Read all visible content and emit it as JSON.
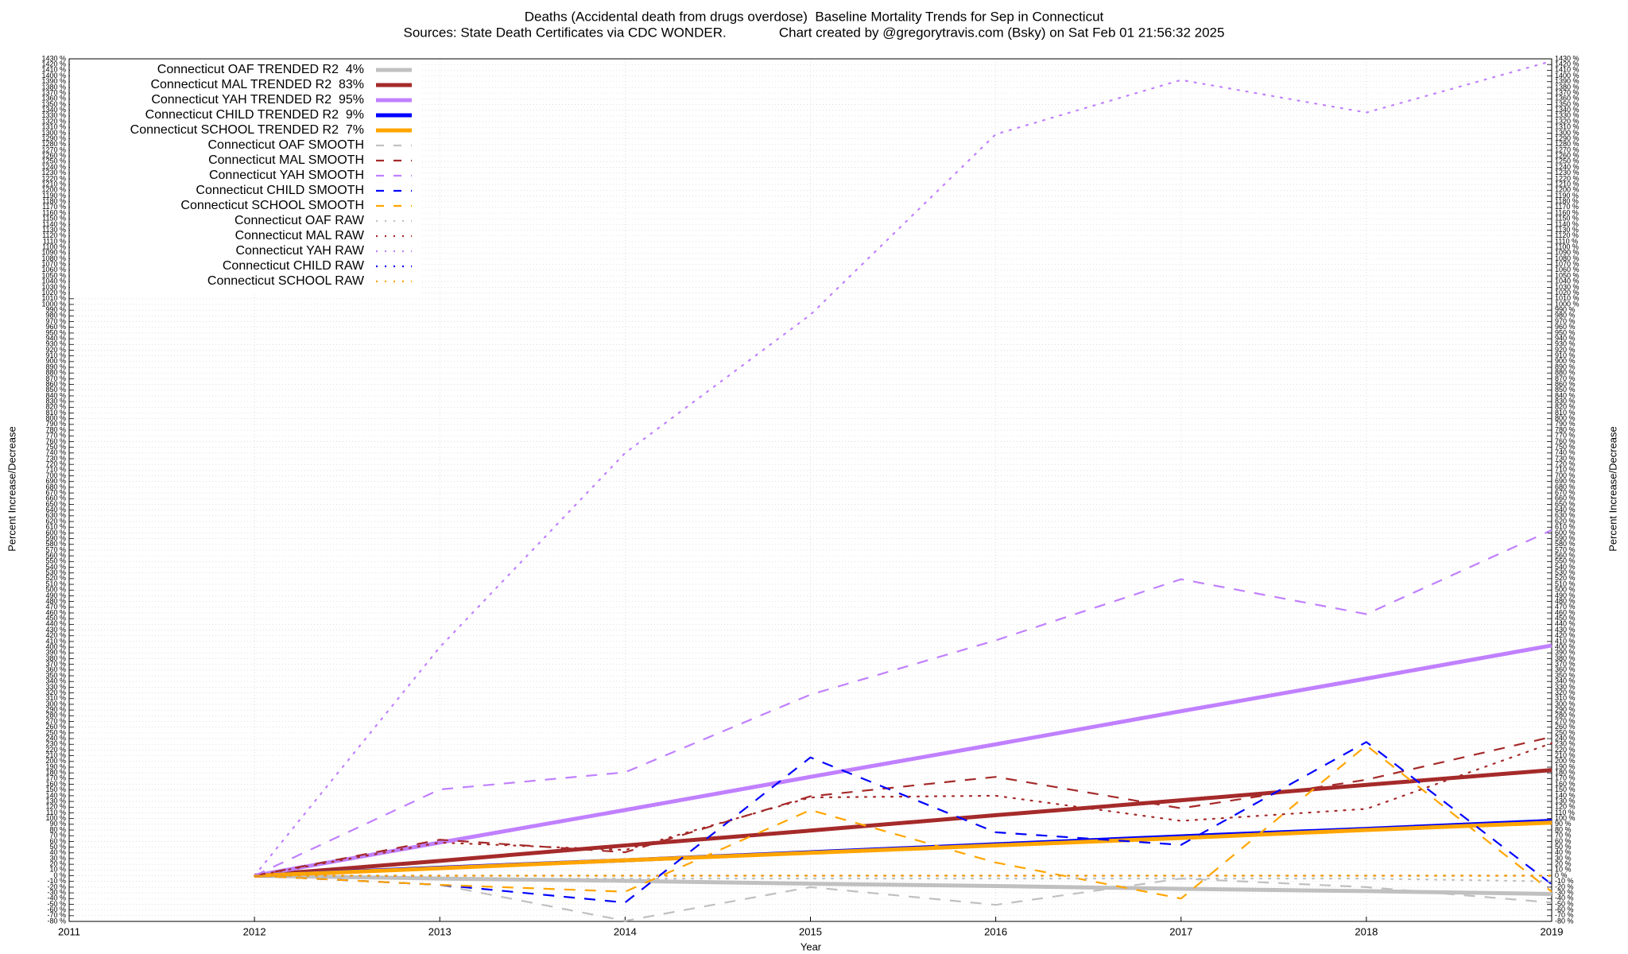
{
  "chart_data": {
    "type": "line",
    "title": "Deaths (Accidental death from drugs overdose)  Baseline Mortality Trends for Sep in Connecticut",
    "subtitle": "Sources: State Death Certificates via CDC WONDER.              Chart created by @gregorytravis.com (Bsky) on Sat Feb 01 21:56:32 2025",
    "x_label": "Year",
    "y_label": "Percent Increase/Decrease",
    "y2_label": "Percent Increase/Decrease",
    "grid": true,
    "legend": "top-left",
    "x": [
      2012,
      2013,
      2014,
      2015,
      2016,
      2017,
      2018,
      2019
    ],
    "xlim": [
      2011,
      2019
    ],
    "xticks": [
      2011,
      2012,
      2013,
      2014,
      2015,
      2016,
      2017,
      2018,
      2019
    ],
    "ylim": [
      -80,
      1430
    ],
    "y2lim": [
      -80,
      1430
    ],
    "yticks": [
      {
        "value": -80,
        "label": "-80 %"
      },
      {
        "value": -70,
        "label": "-70 %"
      },
      {
        "value": -60,
        "label": "-60 %"
      },
      {
        "value": -50,
        "label": "-50 %"
      },
      {
        "value": -40,
        "label": "-40 %"
      },
      {
        "value": -30,
        "label": "-30 %"
      },
      {
        "value": -20,
        "label": "-20 %"
      },
      {
        "value": -10,
        "label": "-10 %"
      },
      {
        "value": 0,
        "label": "0 %"
      },
      {
        "value": 10,
        "label": "10 %"
      },
      {
        "value": 20,
        "label": "20 %"
      },
      {
        "value": 30,
        "label": "30 %"
      },
      {
        "value": 40,
        "label": "40 %"
      },
      {
        "value": 50,
        "label": "50 %"
      },
      {
        "value": 60,
        "label": "60 %"
      },
      {
        "value": 70,
        "label": "70 %"
      },
      {
        "value": 80,
        "label": "80 %"
      },
      {
        "value": 90,
        "label": "90 %"
      },
      {
        "value": 100,
        "label": "100 %"
      },
      {
        "value": 110,
        "label": "110 %"
      },
      {
        "value": 120,
        "label": "120 %"
      },
      {
        "value": 130,
        "label": "130 %"
      },
      {
        "value": 140,
        "label": "140 %"
      },
      {
        "value": 150,
        "label": "150 %"
      },
      {
        "value": 160,
        "label": "160 %"
      },
      {
        "value": 170,
        "label": "170 %"
      },
      {
        "value": 180,
        "label": "180 %"
      },
      {
        "value": 190,
        "label": "190 %"
      },
      {
        "value": 200,
        "label": "200 %"
      },
      {
        "value": 210,
        "label": "210 %"
      },
      {
        "value": 220,
        "label": "220 %"
      },
      {
        "value": 230,
        "label": "230 %"
      },
      {
        "value": 240,
        "label": "240 %"
      },
      {
        "value": 250,
        "label": "250 %"
      },
      {
        "value": 260,
        "label": "260 %"
      },
      {
        "value": 270,
        "label": "270 %"
      },
      {
        "value": 280,
        "label": "280 %"
      },
      {
        "value": 290,
        "label": "290 %"
      },
      {
        "value": 300,
        "label": "300 %"
      },
      {
        "value": 310,
        "label": "310 %"
      },
      {
        "value": 320,
        "label": "320 %"
      },
      {
        "value": 330,
        "label": "330 %"
      },
      {
        "value": 340,
        "label": "340 %"
      },
      {
        "value": 350,
        "label": "350 %"
      },
      {
        "value": 360,
        "label": "360 %"
      },
      {
        "value": 370,
        "label": "370 %"
      },
      {
        "value": 380,
        "label": "380 %"
      },
      {
        "value": 390,
        "label": "390 %"
      },
      {
        "value": 400,
        "label": "400 %"
      },
      {
        "value": 410,
        "label": "410 %"
      },
      {
        "value": 420,
        "label": "420 %"
      },
      {
        "value": 430,
        "label": "430 %"
      },
      {
        "value": 440,
        "label": "440 %"
      },
      {
        "value": 450,
        "label": "450 %"
      },
      {
        "value": 460,
        "label": "460 %"
      },
      {
        "value": 470,
        "label": "470 %"
      },
      {
        "value": 480,
        "label": "480 %"
      },
      {
        "value": 490,
        "label": "490 %"
      },
      {
        "value": 500,
        "label": "500 %"
      },
      {
        "value": 510,
        "label": "510 %"
      },
      {
        "value": 520,
        "label": "520 %"
      },
      {
        "value": 530,
        "label": "530 %"
      },
      {
        "value": 540,
        "label": "540 %"
      },
      {
        "value": 550,
        "label": "550 %"
      },
      {
        "value": 560,
        "label": "560 %"
      },
      {
        "value": 570,
        "label": "570 %"
      },
      {
        "value": 580,
        "label": "580 %"
      },
      {
        "value": 590,
        "label": "590 %"
      },
      {
        "value": 600,
        "label": "600 %"
      },
      {
        "value": 610,
        "label": "610 %"
      },
      {
        "value": 620,
        "label": "620 %"
      },
      {
        "value": 630,
        "label": "630 %"
      },
      {
        "value": 640,
        "label": "640 %"
      },
      {
        "value": 650,
        "label": "650 %"
      },
      {
        "value": 660,
        "label": "660 %"
      },
      {
        "value": 670,
        "label": "670 %"
      },
      {
        "value": 680,
        "label": "680 %"
      },
      {
        "value": 690,
        "label": "690 %"
      },
      {
        "value": 700,
        "label": "700 %"
      },
      {
        "value": 710,
        "label": "710 %"
      },
      {
        "value": 720,
        "label": "720 %"
      },
      {
        "value": 730,
        "label": "730 %"
      },
      {
        "value": 740,
        "label": "740 %"
      },
      {
        "value": 750,
        "label": "750 %"
      },
      {
        "value": 760,
        "label": "760 %"
      },
      {
        "value": 770,
        "label": "770 %"
      },
      {
        "value": 780,
        "label": "780 %"
      },
      {
        "value": 790,
        "label": "790 %"
      },
      {
        "value": 800,
        "label": "800 %"
      },
      {
        "value": 810,
        "label": "810 %"
      },
      {
        "value": 820,
        "label": "820 %"
      },
      {
        "value": 830,
        "label": "830 %"
      },
      {
        "value": 840,
        "label": "840 %"
      },
      {
        "value": 850,
        "label": "850 %"
      },
      {
        "value": 860,
        "label": "860 %"
      },
      {
        "value": 870,
        "label": "870 %"
      },
      {
        "value": 880,
        "label": "880 %"
      },
      {
        "value": 890,
        "label": "890 %"
      },
      {
        "value": 900,
        "label": "900 %"
      },
      {
        "value": 910,
        "label": "910 %"
      },
      {
        "value": 920,
        "label": "920 %"
      },
      {
        "value": 930,
        "label": "930 %"
      },
      {
        "value": 940,
        "label": "940 %"
      },
      {
        "value": 950,
        "label": "950 %"
      },
      {
        "value": 960,
        "label": "960 %"
      },
      {
        "value": 970,
        "label": "970 %"
      },
      {
        "value": 980,
        "label": "980 %"
      },
      {
        "value": 990,
        "label": "990 %"
      },
      {
        "value": 1000,
        "label": "1000 %"
      },
      {
        "value": 1010,
        "label": "1010 %"
      },
      {
        "value": 1020,
        "label": "1020 %"
      },
      {
        "value": 1030,
        "label": "1030 %"
      },
      {
        "value": 1040,
        "label": "1040 %"
      },
      {
        "value": 1050,
        "label": "1050 %"
      },
      {
        "value": 1060,
        "label": "1060 %"
      },
      {
        "value": 1070,
        "label": "1070 %"
      },
      {
        "value": 1080,
        "label": "1080 %"
      },
      {
        "value": 1090,
        "label": "1090 %"
      },
      {
        "value": 1100,
        "label": "1100 %"
      },
      {
        "value": 1110,
        "label": "1110 %"
      },
      {
        "value": 1120,
        "label": "1120 %"
      },
      {
        "value": 1130,
        "label": "1130 %"
      },
      {
        "value": 1140,
        "label": "1140 %"
      },
      {
        "value": 1150,
        "label": "1150 %"
      },
      {
        "value": 1160,
        "label": "1160 %"
      },
      {
        "value": 1170,
        "label": "1170 %"
      },
      {
        "value": 1180,
        "label": "1180 %"
      },
      {
        "value": 1190,
        "label": "1190 %"
      },
      {
        "value": 1200,
        "label": "1200 %"
      },
      {
        "value": 1210,
        "label": "1210 %"
      },
      {
        "value": 1220,
        "label": "1220 %"
      },
      {
        "value": 1230,
        "label": "1230 %"
      },
      {
        "value": 1240,
        "label": "1240 %"
      },
      {
        "value": 1250,
        "label": "1250 %"
      },
      {
        "value": 1260,
        "label": "1260 %"
      },
      {
        "value": 1270,
        "label": "1270 %"
      },
      {
        "value": 1280,
        "label": "1280 %"
      },
      {
        "value": 1290,
        "label": "1290 %"
      },
      {
        "value": 1300,
        "label": "1300 %"
      },
      {
        "value": 1310,
        "label": "1310 %"
      },
      {
        "value": 1320,
        "label": "1320 %"
      },
      {
        "value": 1330,
        "label": "1330 %"
      },
      {
        "value": 1340,
        "label": "1340 %"
      },
      {
        "value": 1350,
        "label": "1350 %"
      },
      {
        "value": 1360,
        "label": "1360 %"
      },
      {
        "value": 1370,
        "label": "1370 %"
      },
      {
        "value": 1380,
        "label": "1380 %"
      },
      {
        "value": 1390,
        "label": "1390 %"
      },
      {
        "value": 1400,
        "label": "1400 %"
      },
      {
        "value": 1410,
        "label": "1410 %"
      },
      {
        "value": 1420,
        "label": "1420 %"
      },
      {
        "value": 1430,
        "label": "1430 %"
      }
    ],
    "series": [
      {
        "name": "Connecticut OAF TRENDED R2  4%",
        "color": "#c0c0c0",
        "style": "solid",
        "values": [
          0,
          -5,
          -9,
          -14,
          -18,
          -23,
          -27,
          -32
        ]
      },
      {
        "name": "Connecticut MAL TRENDED R2  83%",
        "color": "#a52a2a",
        "style": "solid",
        "values": [
          0,
          26,
          53,
          79,
          106,
          132,
          159,
          185
        ]
      },
      {
        "name": "Connecticut YAH TRENDED R2  95%",
        "color": "#c080ff",
        "style": "solid",
        "values": [
          0,
          58,
          115,
          173,
          230,
          288,
          345,
          403
        ]
      },
      {
        "name": "Connecticut CHILD TRENDED R2  9%",
        "color": "#0000ff",
        "style": "solid",
        "values": [
          0,
          14,
          27,
          41,
          55,
          69,
          82,
          96
        ]
      },
      {
        "name": "Connecticut SCHOOL TRENDED R2  7%",
        "color": "#ffa500",
        "style": "solid",
        "values": [
          0,
          13,
          27,
          40,
          53,
          66,
          80,
          93
        ]
      },
      {
        "name": "Connecticut OAF SMOOTH",
        "color": "#c0c0c0",
        "style": "dashed",
        "values": [
          0,
          -16,
          -79,
          -20,
          -51,
          -5,
          -20,
          -47
        ]
      },
      {
        "name": "Connecticut MAL SMOOTH",
        "color": "#a52a2a",
        "style": "dashed",
        "values": [
          0,
          63,
          41,
          139,
          173,
          118,
          168,
          243
        ]
      },
      {
        "name": "Connecticut YAH SMOOTH",
        "color": "#c080ff",
        "style": "dashed",
        "values": [
          0,
          151,
          181,
          317,
          412,
          519,
          458,
          605
        ]
      },
      {
        "name": "Connecticut CHILD SMOOTH",
        "color": "#0000ff",
        "style": "dashed",
        "values": [
          0,
          -16,
          -47,
          207,
          76,
          54,
          234,
          -15
        ]
      },
      {
        "name": "Connecticut SCHOOL SMOOTH",
        "color": "#ffa500",
        "style": "dashed",
        "values": [
          0,
          -16,
          -28,
          115,
          23,
          -40,
          228,
          -28
        ]
      },
      {
        "name": "Connecticut OAF RAW",
        "color": "#c0c0c0",
        "style": "dotted",
        "values": [
          0,
          -5,
          -5,
          -5,
          -5,
          -5,
          -5,
          -10
        ]
      },
      {
        "name": "Connecticut MAL RAW",
        "color": "#a52a2a",
        "style": "dotted",
        "values": [
          0,
          58,
          45,
          137,
          140,
          96,
          117,
          232
        ]
      },
      {
        "name": "Connecticut YAH RAW",
        "color": "#c080ff",
        "style": "dotted",
        "values": [
          0,
          400,
          740,
          982,
          1298,
          1393,
          1336,
          1426
        ]
      },
      {
        "name": "Connecticut CHILD RAW",
        "color": "#0000ff",
        "style": "dotted",
        "values": [
          0,
          0,
          0,
          0,
          0,
          0,
          0,
          0
        ]
      },
      {
        "name": "Connecticut SCHOOL RAW",
        "color": "#ffa500",
        "style": "dotted",
        "values": [
          0,
          0,
          0,
          0,
          0,
          0,
          0,
          0
        ]
      }
    ]
  }
}
